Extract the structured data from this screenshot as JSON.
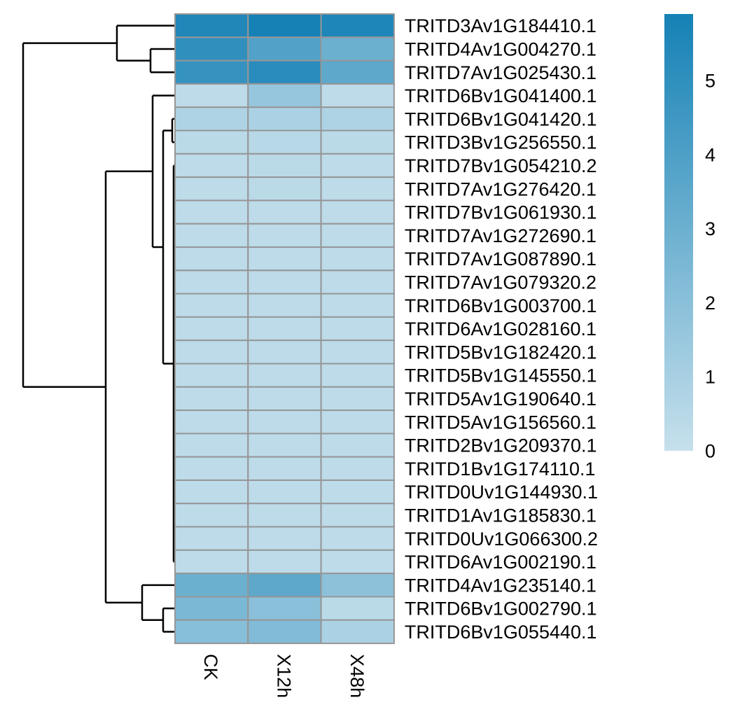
{
  "chart_data": {
    "type": "heatmap",
    "title": "",
    "columns": [
      "CK",
      "X12h",
      "X48h"
    ],
    "rows": [
      "TRITD3Av1G184410.1",
      "TRITD4Av1G004270.1",
      "TRITD7Av1G025430.1",
      "TRITD6Bv1G041400.1",
      "TRITD6Bv1G041420.1",
      "TRITD3Bv1G256550.1",
      "TRITD7Bv1G054210.2",
      "TRITD7Av1G276420.1",
      "TRITD7Bv1G061930.1",
      "TRITD7Av1G272690.1",
      "TRITD7Av1G087890.1",
      "TRITD7Av1G079320.2",
      "TRITD6Bv1G003700.1",
      "TRITD6Av1G028160.1",
      "TRITD5Bv1G182420.1",
      "TRITD5Bv1G145550.1",
      "TRITD5Av1G190640.1",
      "TRITD5Av1G156560.1",
      "TRITD2Bv1G209370.1",
      "TRITD1Bv1G174110.1",
      "TRITD0Uv1G144930.1",
      "TRITD1Av1G185830.1",
      "TRITD0Uv1G066300.2",
      "TRITD6Av1G002190.1",
      "TRITD4Av1G235140.1",
      "TRITD6Bv1G002790.1",
      "TRITD6Bv1G055440.1"
    ],
    "values": [
      [
        5.5,
        5.9,
        5.6
      ],
      [
        5.0,
        3.9,
        3.0
      ],
      [
        4.8,
        5.2,
        3.5
      ],
      [
        0.3,
        1.6,
        0.3
      ],
      [
        0.8,
        0.9,
        0.8
      ],
      [
        0.4,
        0.5,
        0.4
      ],
      [
        0.3,
        0.4,
        0.3
      ],
      [
        0.3,
        0.4,
        0.3
      ],
      [
        0.3,
        0.3,
        0.3
      ],
      [
        0.3,
        0.3,
        0.3
      ],
      [
        0.3,
        0.3,
        0.3
      ],
      [
        0.3,
        0.3,
        0.3
      ],
      [
        0.3,
        0.3,
        0.3
      ],
      [
        0.3,
        0.3,
        0.3
      ],
      [
        0.3,
        0.3,
        0.3
      ],
      [
        0.3,
        0.3,
        0.3
      ],
      [
        0.3,
        0.3,
        0.3
      ],
      [
        0.3,
        0.3,
        0.3
      ],
      [
        0.3,
        0.3,
        0.3
      ],
      [
        0.3,
        0.3,
        0.3
      ],
      [
        0.3,
        0.3,
        0.3
      ],
      [
        0.3,
        0.3,
        0.3
      ],
      [
        0.3,
        0.3,
        0.3
      ],
      [
        0.3,
        0.3,
        0.3
      ],
      [
        3.0,
        3.5,
        1.9
      ],
      [
        2.5,
        2.0,
        0.4
      ],
      [
        2.1,
        2.3,
        0.9
      ]
    ],
    "color_scale": {
      "min": 0,
      "max": 5.9,
      "low_color": "#c6e0ec",
      "high_color": "#1581b5"
    },
    "legend": {
      "position": "right",
      "ticks": [
        0,
        1,
        2,
        3,
        4,
        5
      ]
    },
    "row_dendrogram": true,
    "column_dendrogram": false
  }
}
